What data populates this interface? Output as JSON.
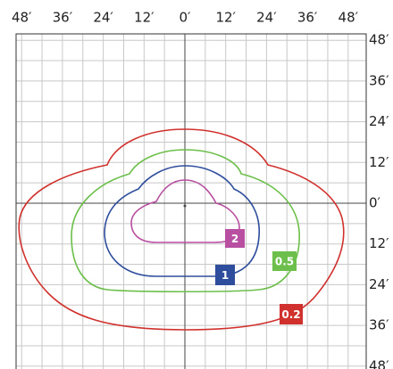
{
  "top_axis": {
    "labels": [
      "48′",
      "36′",
      "24′",
      "12′",
      "0′",
      "12′",
      "24′",
      "36′",
      "48′"
    ]
  },
  "right_axis": {
    "labels": [
      "48′",
      "36′",
      "24′",
      "12′",
      "0′",
      "12′",
      "24′",
      "36′",
      "48′"
    ]
  },
  "contours": [
    {
      "label": "0.2",
      "color": "#d0312d"
    },
    {
      "label": "0.5",
      "color": "#6cbf4a"
    },
    {
      "label": "1",
      "color": "#2e4d9c"
    },
    {
      "label": "2",
      "color": "#b84fa0"
    }
  ]
}
